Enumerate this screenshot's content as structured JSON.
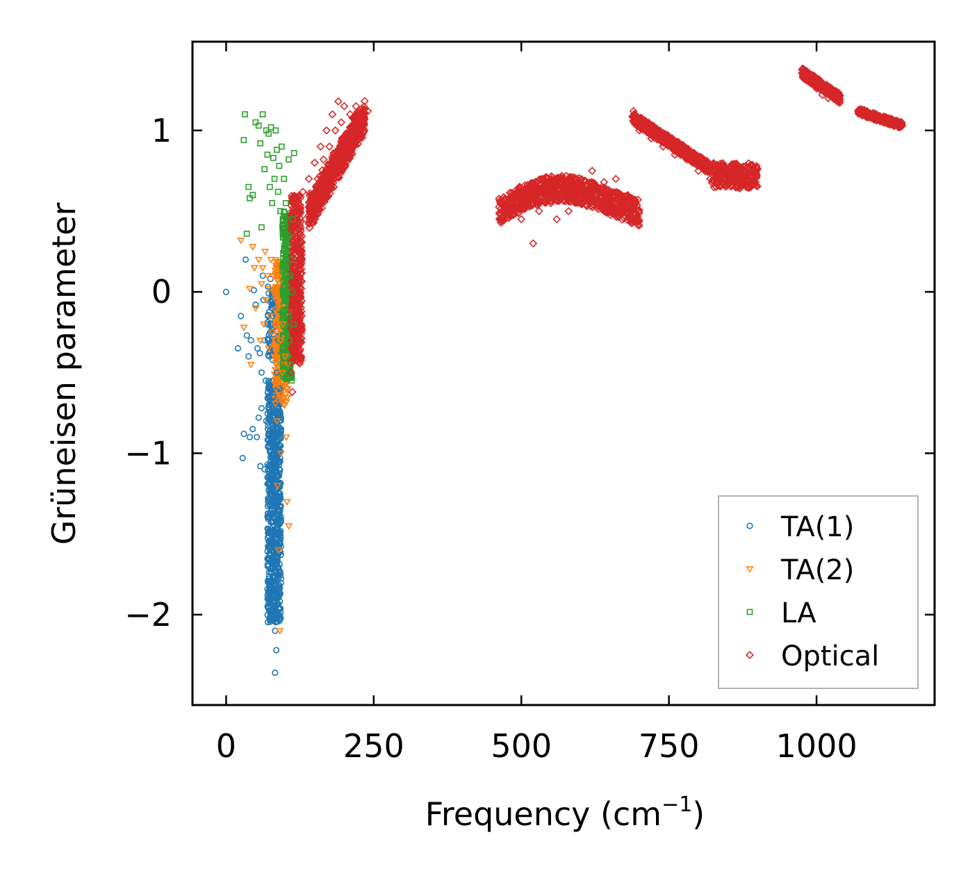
{
  "chart_data": {
    "type": "scatter",
    "title": "",
    "xlabel": "Frequency (cm",
    "xlabel_sup": "−1",
    "xlabel_close": ")",
    "ylabel": "Grüneisen parameter",
    "xlim": [
      -57,
      1200
    ],
    "ylim": [
      -2.56,
      1.55
    ],
    "xticks": [
      0,
      250,
      500,
      750,
      1000
    ],
    "xtick_labels": [
      "0",
      "250",
      "500",
      "750",
      "1000"
    ],
    "yticks": [
      -2,
      -1,
      0,
      1
    ],
    "ytick_labels": [
      "−2",
      "−1",
      "0",
      "1"
    ],
    "legend_position": "lower-right",
    "series": [
      {
        "name": "TA(1)",
        "marker": "circle",
        "color": "#1f77b4",
        "points": [
          [
            0,
            0
          ],
          [
            20,
            -0.35
          ],
          [
            25,
            -0.15
          ],
          [
            28,
            -1.03
          ],
          [
            30,
            -0.88
          ],
          [
            33,
            0.2
          ],
          [
            35,
            -0.27
          ],
          [
            38,
            -0.4
          ],
          [
            40,
            -0.9
          ],
          [
            42,
            -0.3
          ],
          [
            45,
            -0.85
          ],
          [
            47,
            0.01
          ],
          [
            50,
            -0.08
          ],
          [
            52,
            -0.9
          ],
          [
            53,
            -0.35
          ],
          [
            55,
            -0.78
          ],
          [
            57,
            -0.38
          ],
          [
            58,
            -1.08
          ],
          [
            60,
            -0.5
          ],
          [
            60,
            -0.72
          ],
          [
            62,
            0.1
          ],
          [
            63,
            -0.05
          ],
          [
            65,
            -1.1
          ],
          [
            65,
            -0.3
          ],
          [
            67,
            -0.55
          ],
          [
            68,
            -0.8
          ],
          [
            70,
            -0.2
          ],
          [
            70,
            -1.15
          ],
          [
            71,
            -1.3
          ],
          [
            72,
            -0.6
          ],
          [
            73,
            -0.4
          ],
          [
            74,
            -1.4
          ],
          [
            75,
            -0.9
          ],
          [
            75,
            0.08
          ],
          [
            76,
            -1.55
          ],
          [
            77,
            -1.25
          ],
          [
            78,
            -0.15
          ],
          [
            78,
            -1.7
          ],
          [
            79,
            -1.05
          ],
          [
            80,
            -1.85
          ],
          [
            80,
            -0.65
          ],
          [
            81,
            -2.0
          ],
          [
            82,
            -1.45
          ],
          [
            82,
            -0.95
          ],
          [
            83,
            -2.1
          ],
          [
            83,
            -2.36
          ],
          [
            84,
            -1.6
          ],
          [
            84,
            -0.75
          ],
          [
            85,
            -1.2
          ],
          [
            85,
            -2.22
          ],
          [
            86,
            -1.9
          ],
          [
            86,
            -0.5
          ],
          [
            87,
            -1.35
          ],
          [
            87,
            -1.75
          ],
          [
            88,
            -1.0
          ],
          [
            88,
            -0.85
          ],
          [
            89,
            -1.5
          ],
          [
            89,
            -0.3
          ],
          [
            90,
            -1.1
          ],
          [
            90,
            -0.6
          ],
          [
            91,
            -1.28
          ],
          [
            92,
            -0.9
          ],
          [
            93,
            -0.78
          ]
        ]
      },
      {
        "name": "TA(2)",
        "marker": "triangle-down",
        "color": "#ff7f0e",
        "points": [
          [
            25,
            0.32
          ],
          [
            30,
            -0.22
          ],
          [
            40,
            0.02
          ],
          [
            42,
            -0.45
          ],
          [
            45,
            0.28
          ],
          [
            48,
            0.15
          ],
          [
            50,
            -0.1
          ],
          [
            55,
            0.2
          ],
          [
            58,
            -0.3
          ],
          [
            60,
            0.05
          ],
          [
            62,
            0.15
          ],
          [
            64,
            -0.2
          ],
          [
            66,
            0.25
          ],
          [
            68,
            -0.05
          ],
          [
            70,
            0.1
          ],
          [
            72,
            -0.35
          ],
          [
            74,
            0.02
          ],
          [
            75,
            -0.15
          ],
          [
            76,
            0.2
          ],
          [
            78,
            -0.25
          ],
          [
            80,
            0.1
          ],
          [
            81,
            -0.4
          ],
          [
            82,
            0.0
          ],
          [
            84,
            -0.6
          ],
          [
            85,
            0.15
          ],
          [
            86,
            -0.8
          ],
          [
            87,
            -1.2
          ],
          [
            88,
            -0.1
          ],
          [
            89,
            -1.6
          ],
          [
            90,
            0.05
          ],
          [
            91,
            -2.1
          ],
          [
            92,
            -0.3
          ],
          [
            93,
            -1.0
          ],
          [
            95,
            -0.5
          ],
          [
            96,
            -0.2
          ],
          [
            98,
            -0.7
          ],
          [
            100,
            -0.4
          ],
          [
            102,
            -0.9
          ],
          [
            103,
            -1.3
          ],
          [
            104,
            -0.6
          ],
          [
            105,
            -0.45
          ],
          [
            106,
            -1.45
          ]
        ]
      },
      {
        "name": "LA",
        "marker": "square",
        "color": "#2ca02c",
        "points": [
          [
            30,
            0.94
          ],
          [
            32,
            1.1
          ],
          [
            35,
            0.36
          ],
          [
            38,
            0.65
          ],
          [
            40,
            0.58
          ],
          [
            45,
            0.6
          ],
          [
            50,
            1.05
          ],
          [
            55,
            1.03
          ],
          [
            58,
            0.92
          ],
          [
            60,
            0.4
          ],
          [
            62,
            1.1
          ],
          [
            65,
            0.76
          ],
          [
            68,
            1.0
          ],
          [
            70,
            0.85
          ],
          [
            72,
            0.98
          ],
          [
            74,
            0.65
          ],
          [
            76,
            1.02
          ],
          [
            78,
            0.55
          ],
          [
            80,
            0.83
          ],
          [
            82,
            0.7
          ],
          [
            84,
            1.0
          ],
          [
            86,
            0.88
          ],
          [
            88,
            0.62
          ],
          [
            90,
            0.78
          ],
          [
            92,
            0.5
          ],
          [
            94,
            0.9
          ],
          [
            96,
            0.45
          ],
          [
            98,
            0.7
          ],
          [
            100,
            0.3
          ],
          [
            101,
            0.55
          ],
          [
            102,
            0.15
          ],
          [
            103,
            0.0
          ],
          [
            104,
            0.35
          ],
          [
            105,
            -0.15
          ],
          [
            106,
            0.82
          ],
          [
            107,
            -0.3
          ],
          [
            108,
            0.1
          ],
          [
            109,
            -0.45
          ],
          [
            110,
            0.2
          ],
          [
            111,
            -0.55
          ],
          [
            112,
            0.0
          ],
          [
            113,
            0.45
          ],
          [
            114,
            -0.2
          ],
          [
            115,
            0.86
          ]
        ]
      },
      {
        "name": "Optical",
        "marker": "diamond",
        "color": "#d62728",
        "points": [
          [
            110,
            -0.5
          ],
          [
            112,
            -0.62
          ],
          [
            115,
            -0.25
          ],
          [
            118,
            0.0
          ],
          [
            120,
            0.3
          ],
          [
            122,
            -0.1
          ],
          [
            125,
            0.5
          ],
          [
            128,
            0.2
          ],
          [
            130,
            0.62
          ],
          [
            135,
            0.45
          ],
          [
            140,
            0.7
          ],
          [
            145,
            0.6
          ],
          [
            150,
            0.8
          ],
          [
            155,
            0.7
          ],
          [
            160,
            0.9
          ],
          [
            165,
            0.82
          ],
          [
            170,
            1.0
          ],
          [
            175,
            0.9
          ],
          [
            180,
            1.1
          ],
          [
            185,
            1.0
          ],
          [
            190,
            1.18
          ],
          [
            195,
            1.05
          ],
          [
            200,
            1.15
          ],
          [
            205,
            0.95
          ],
          [
            210,
            1.1
          ],
          [
            215,
            1.0
          ],
          [
            220,
            1.15
          ],
          [
            225,
            1.05
          ],
          [
            230,
            1.12
          ],
          [
            240,
            1.12
          ],
          [
            470,
            0.55
          ],
          [
            480,
            0.5
          ],
          [
            490,
            0.6
          ],
          [
            500,
            0.45
          ],
          [
            510,
            0.55
          ],
          [
            520,
            0.3
          ],
          [
            530,
            0.5
          ],
          [
            540,
            0.62
          ],
          [
            550,
            0.55
          ],
          [
            560,
            0.45
          ],
          [
            570,
            0.6
          ],
          [
            580,
            0.5
          ],
          [
            590,
            0.58
          ],
          [
            600,
            0.68
          ],
          [
            610,
            0.62
          ],
          [
            620,
            0.75
          ],
          [
            630,
            0.6
          ],
          [
            640,
            0.68
          ],
          [
            650,
            0.55
          ],
          [
            660,
            0.7
          ],
          [
            670,
            0.5
          ],
          [
            680,
            0.6
          ],
          [
            690,
            1.12
          ],
          [
            700,
            1.0
          ],
          [
            710,
            1.05
          ],
          [
            720,
            0.95
          ],
          [
            730,
            0.98
          ],
          [
            740,
            0.9
          ],
          [
            750,
            0.92
          ],
          [
            760,
            0.85
          ],
          [
            770,
            0.88
          ],
          [
            780,
            0.82
          ],
          [
            790,
            0.8
          ],
          [
            800,
            0.75
          ],
          [
            810,
            0.78
          ],
          [
            820,
            0.7
          ],
          [
            830,
            0.65
          ],
          [
            840,
            0.72
          ],
          [
            850,
            0.68
          ],
          [
            860,
            0.75
          ],
          [
            870,
            0.7
          ],
          [
            880,
            0.78
          ],
          [
            890,
            0.72
          ],
          [
            900,
            0.76
          ],
          [
            980,
            1.34
          ],
          [
            990,
            1.3
          ],
          [
            1000,
            1.26
          ],
          [
            1010,
            1.22
          ],
          [
            1020,
            1.2
          ],
          [
            1035,
            1.18
          ],
          [
            1075,
            1.12
          ],
          [
            1090,
            1.1
          ],
          [
            1100,
            1.08
          ],
          [
            1110,
            1.07
          ],
          [
            1120,
            1.05
          ],
          [
            1130,
            1.04
          ],
          [
            1140,
            1.02
          ]
        ]
      }
    ],
    "clusters": [
      {
        "series": 0,
        "x0": 70,
        "x1": 93,
        "y0": -2.05,
        "y1": -0.55,
        "n": 700,
        "shape": "hband",
        "seed": 1
      },
      {
        "series": 0,
        "x0": 70,
        "x1": 92,
        "y0": -0.45,
        "y1": 0.05,
        "n": 90,
        "shape": "hband",
        "seed": 2
      },
      {
        "series": 1,
        "x0": 82,
        "x1": 104,
        "y0": -0.7,
        "y1": 0.2,
        "n": 260,
        "shape": "hband",
        "seed": 3
      },
      {
        "series": 2,
        "x0": 95,
        "x1": 112,
        "y0": -0.55,
        "y1": 0.5,
        "n": 320,
        "shape": "hband",
        "seed": 4
      },
      {
        "series": 3,
        "x0": 110,
        "x1": 128,
        "y0": -0.45,
        "y1": 0.6,
        "n": 380,
        "shape": "hband",
        "seed": 5
      },
      {
        "series": 3,
        "x0": 140,
        "x1": 235,
        "y0": 0.55,
        "y1": 1.15,
        "n": 700,
        "shape": "sloped",
        "slope": 0.0065,
        "yspread": 0.28,
        "seed": 6
      },
      {
        "series": 3,
        "x0": 462,
        "x1": 700,
        "y0": 0.38,
        "y1": 0.72,
        "n": 900,
        "shape": "wavy",
        "seed": 7
      },
      {
        "series": 3,
        "x0": 688,
        "x1": 820,
        "y0": 0.74,
        "y1": 1.08,
        "n": 500,
        "shape": "sloped",
        "slope": -0.0024,
        "yspread": 0.07,
        "seed": 8
      },
      {
        "series": 3,
        "x0": 820,
        "x1": 900,
        "y0": 0.64,
        "y1": 0.8,
        "n": 260,
        "shape": "hband",
        "seed": 9
      },
      {
        "series": 3,
        "x0": 975,
        "x1": 1040,
        "y0": 1.18,
        "y1": 1.36,
        "n": 260,
        "shape": "sloped",
        "slope": -0.0025,
        "yspread": 0.06,
        "seed": 10
      },
      {
        "series": 3,
        "x0": 1070,
        "x1": 1145,
        "y0": 1.02,
        "y1": 1.12,
        "n": 240,
        "shape": "sloped",
        "slope": -0.0012,
        "yspread": 0.04,
        "seed": 11
      }
    ]
  }
}
